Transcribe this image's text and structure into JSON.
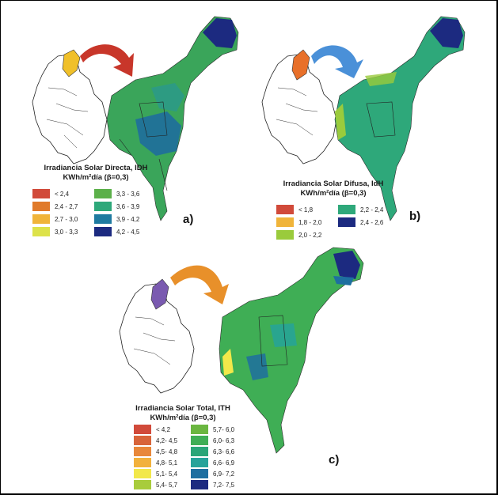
{
  "panels": [
    {
      "id": "a",
      "letter": "a)",
      "title_line1": "Irradiancia Solar Directa, IDH",
      "title_line2": "KWh/m²día (β=0,3)",
      "legend": [
        {
          "label": "< 2,4",
          "color": "#d14a3a"
        },
        {
          "label": "2,4 - 2,7",
          "color": "#e07a2a"
        },
        {
          "label": "2,7 - 3,0",
          "color": "#f0b43a"
        },
        {
          "label": "3,0 - 3,3",
          "color": "#dde24a"
        },
        {
          "label": "3,3 - 3,6",
          "color": "#5cb04a"
        },
        {
          "label": "3,6 - 3,9",
          "color": "#2ea87a"
        },
        {
          "label": "3,9 - 4,2",
          "color": "#1e7aa0"
        },
        {
          "label": "4,2 - 4,5",
          "color": "#1c2a80"
        }
      ]
    },
    {
      "id": "b",
      "letter": "b)",
      "title_line1": "Irradiancia Solar Difusa, IdH",
      "title_line2": "KWh/m²día (β=0,3)",
      "legend": [
        {
          "label": "< 1,8",
          "color": "#d14a3a"
        },
        {
          "label": "1,8 - 2,0",
          "color": "#f0b43a"
        },
        {
          "label": "2,0 - 2,2",
          "color": "#9acb3c"
        },
        {
          "label": "2,2 - 2,4",
          "color": "#2ea87a"
        },
        {
          "label": "2,4 - 2,6",
          "color": "#1c2a80"
        }
      ]
    },
    {
      "id": "c",
      "letter": "c)",
      "title_line1": "Irradiancia Solar Total, ITH",
      "title_line2": "KWh/m²día (β=0,3)",
      "legend": [
        {
          "label": "< 4,2",
          "color": "#d14a3a"
        },
        {
          "label": "4,2- 4,5",
          "color": "#d8643a"
        },
        {
          "label": "4,5- 4,8",
          "color": "#e8873a"
        },
        {
          "label": "4,8- 5,1",
          "color": "#f2b13c"
        },
        {
          "label": "5,1- 5,4",
          "color": "#f2e84a"
        },
        {
          "label": "5,4- 5,7",
          "color": "#a8cc3c"
        },
        {
          "label": "5,7- 6,0",
          "color": "#6ab640"
        },
        {
          "label": "6,0- 6,3",
          "color": "#3fae55"
        },
        {
          "label": "6,3- 6,6",
          "color": "#2aa578"
        },
        {
          "label": "6,6- 6,9",
          "color": "#26a39a"
        },
        {
          "label": "6,9- 7,2",
          "color": "#1e6fa0"
        },
        {
          "label": "7,2- 7,5",
          "color": "#1c2a80"
        }
      ]
    }
  ],
  "colors": {
    "region_green": "#3aa55a",
    "region_teal": "#2c9a86",
    "region_blue": "#1f6e9c",
    "region_navy": "#1c2a80",
    "arrow_red": "#c8362a",
    "arrow_blue": "#4a90d8",
    "arrow_orange": "#e8902a",
    "highlight_yellow": "#f0c02a",
    "highlight_orange": "#e8702a",
    "highlight_purple": "#7a5ab0"
  }
}
